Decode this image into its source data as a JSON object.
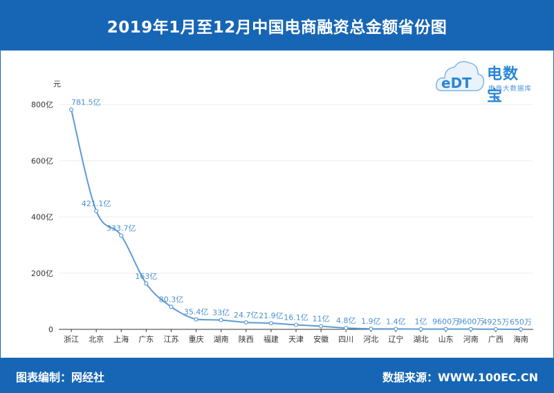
{
  "header": {
    "title": "2019年1月至12月中国电商融资总金额省份图"
  },
  "footer": {
    "left": "图表编制：网经社",
    "right": "数据来源：WWW.100EC.CN"
  },
  "logo": {
    "mark": "eDT",
    "brand": "电数宝",
    "sub": "电商大数据库"
  },
  "colors": {
    "accent": "#1766b5",
    "line": "#5b9bd5",
    "label": "#4a8fd0"
  },
  "chart_data": {
    "type": "line",
    "ylabel": "元",
    "ylim": [
      0,
      800
    ],
    "yticks": [
      "0",
      "200亿",
      "400亿",
      "600亿",
      "800亿"
    ],
    "ytick_values": [
      0,
      200,
      400,
      600,
      800
    ],
    "categories": [
      "浙江",
      "北京",
      "上海",
      "广东",
      "江苏",
      "重庆",
      "湖南",
      "陕西",
      "福建",
      "天津",
      "安徽",
      "四川",
      "河北",
      "辽宁",
      "湖北",
      "山东",
      "河南",
      "广西",
      "海南"
    ],
    "values": [
      781.5,
      421.1,
      333.7,
      163,
      80.3,
      35.4,
      33,
      24.7,
      21.9,
      16.1,
      11,
      4.8,
      1.9,
      1.4,
      1,
      0.96,
      0.96,
      0.4925,
      0.065
    ],
    "labels": [
      "781.5亿",
      "421.1亿",
      "333.7亿",
      "163亿",
      "80.3亿",
      "35.4亿",
      "33亿",
      "24.7亿",
      "21.9亿",
      "16.1亿",
      "11亿",
      "4.8亿",
      "1.9亿",
      "1.4亿",
      "1亿",
      "9600万",
      "9600万",
      "4925万",
      "650万"
    ],
    "grid": true,
    "smooth": true
  }
}
